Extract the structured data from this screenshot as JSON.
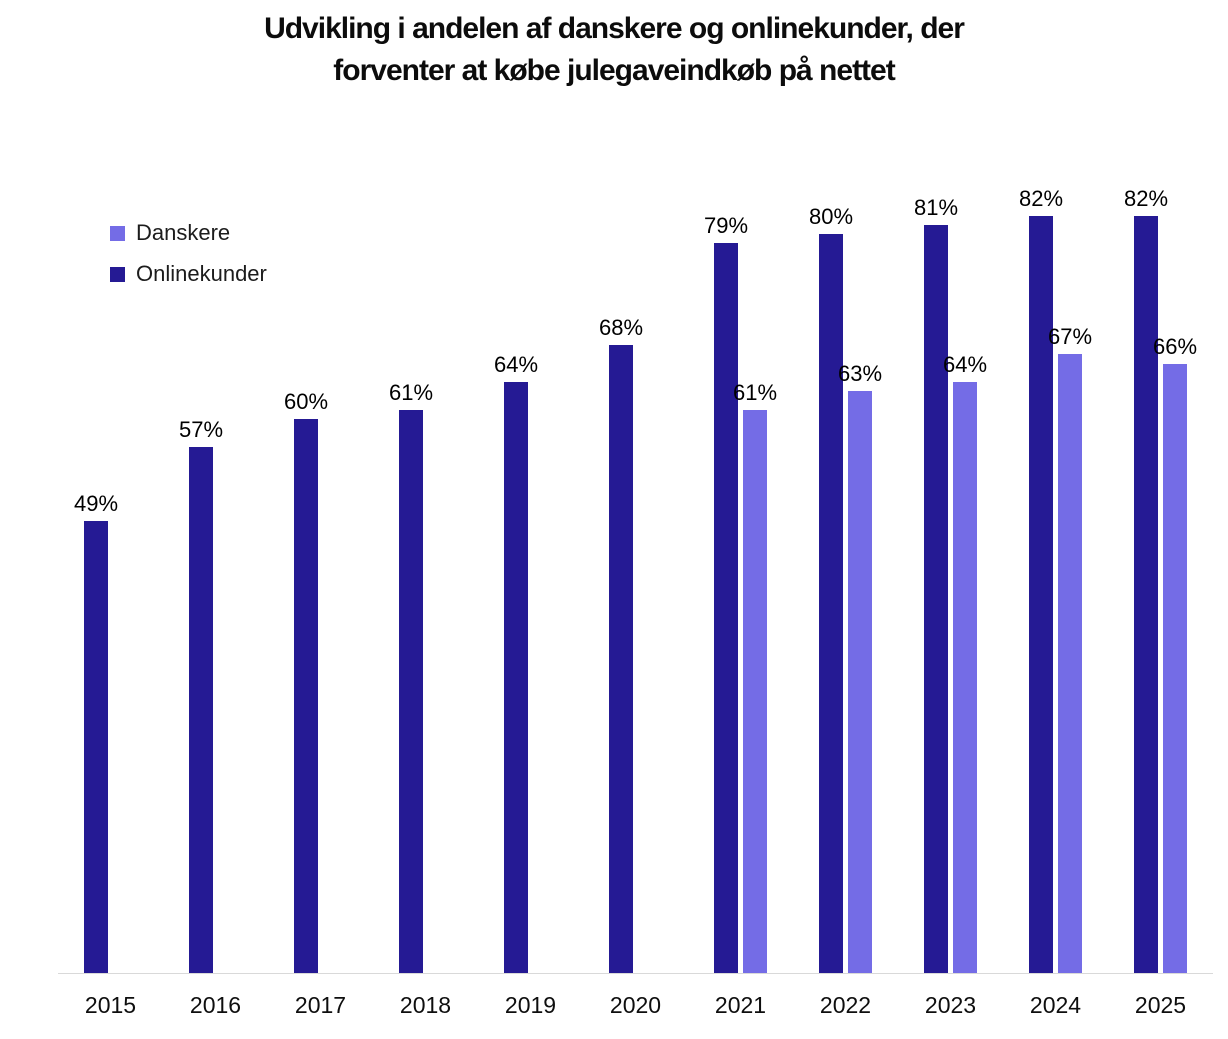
{
  "title": {
    "lines": [
      "Udvikling i andelen af danskere og onlinekunder, der",
      "forventer at købe julegaveindkøb på nettet"
    ]
  },
  "chart_data": {
    "type": "bar",
    "title": "Udvikling i andelen af danskere og onlinekunder, der forventer at købe julegaveindkøb på nettet",
    "categories": [
      "2015",
      "2016",
      "2017",
      "2018",
      "2019",
      "2020",
      "2021",
      "2022",
      "2023",
      "2024",
      "2025"
    ],
    "series": [
      {
        "name": "Danskere",
        "color": "#746CE6",
        "values": [
          null,
          null,
          null,
          null,
          null,
          null,
          61,
          63,
          64,
          67,
          66
        ]
      },
      {
        "name": "Onlinekunder",
        "color": "#251A94",
        "values": [
          49,
          57,
          60,
          61,
          64,
          68,
          79,
          80,
          81,
          82,
          82
        ]
      }
    ],
    "value_suffix": "%",
    "xlabel": "",
    "ylabel": "",
    "ylim": [
      0,
      85
    ],
    "grid": false,
    "y_axis_ticks_visible": false,
    "legend_position": "top-left",
    "axis_line_color": "#d9d9d9",
    "background_color": "#ffffff"
  }
}
